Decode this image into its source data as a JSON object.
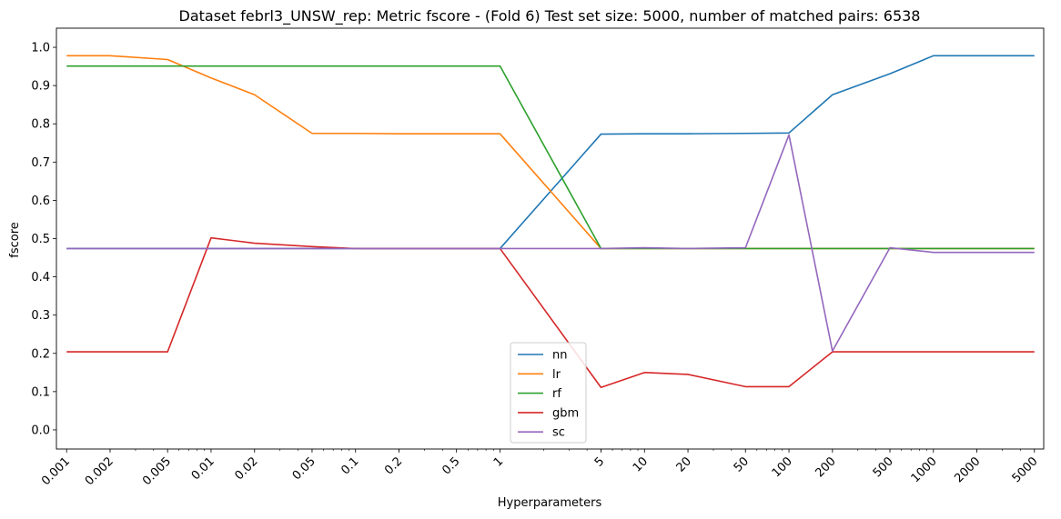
{
  "chart_data": {
    "type": "line",
    "title": "Dataset febrl3_UNSW_rep: Metric fscore - (Fold 6) Test set size: 5000, number of matched pairs: 6538",
    "xlabel": "Hyperparameters",
    "ylabel": "fscore",
    "xscale": "log",
    "x_ticks": [
      "0.001",
      "0.002",
      "0.005",
      "0.01",
      "0.02",
      "0.05",
      "0.1",
      "0.2",
      "0.5",
      "1",
      "5",
      "10",
      "20",
      "50",
      "100",
      "200",
      "500",
      "1000",
      "2000",
      "5000"
    ],
    "y_ticks": [
      "0.0",
      "0.1",
      "0.2",
      "0.3",
      "0.4",
      "0.5",
      "0.6",
      "0.7",
      "0.8",
      "0.9",
      "1.0"
    ],
    "ylim": [
      -0.05,
      1.05
    ],
    "legend_position": "lower center",
    "grid": false,
    "series": [
      {
        "name": "nn",
        "color": "#1f77b4",
        "x": [
          0.001,
          0.002,
          0.005,
          0.01,
          0.02,
          0.05,
          0.1,
          0.2,
          0.5,
          1,
          5,
          10,
          20,
          50,
          100,
          200,
          500,
          1000,
          2000,
          5000
        ],
        "values": [
          0.474,
          0.474,
          0.474,
          0.474,
          0.474,
          0.474,
          0.474,
          0.474,
          0.474,
          0.474,
          0.773,
          0.774,
          0.774,
          0.775,
          0.776,
          0.876,
          0.931,
          0.978,
          0.978,
          0.978
        ]
      },
      {
        "name": "lr",
        "color": "#ff7f0e",
        "x": [
          0.001,
          0.002,
          0.005,
          0.01,
          0.02,
          0.05,
          0.1,
          0.2,
          0.5,
          1,
          5,
          10,
          20,
          50,
          100,
          200,
          500,
          1000,
          2000,
          5000
        ],
        "values": [
          0.978,
          0.978,
          0.968,
          0.92,
          0.876,
          0.775,
          0.775,
          0.774,
          0.774,
          0.774,
          0.474,
          0.474,
          0.474,
          0.474,
          0.474,
          0.474,
          0.474,
          0.474,
          0.474,
          0.474
        ]
      },
      {
        "name": "rf",
        "color": "#2ca02c",
        "x": [
          0.001,
          0.002,
          0.005,
          0.01,
          0.02,
          0.05,
          0.1,
          0.2,
          0.5,
          1,
          5,
          10,
          20,
          50,
          100,
          200,
          500,
          1000,
          2000,
          5000
        ],
        "values": [
          0.951,
          0.951,
          0.951,
          0.951,
          0.951,
          0.951,
          0.951,
          0.951,
          0.951,
          0.951,
          0.474,
          0.474,
          0.474,
          0.474,
          0.474,
          0.474,
          0.474,
          0.474,
          0.474,
          0.474
        ]
      },
      {
        "name": "gbm",
        "color": "#d62728",
        "x": [
          0.001,
          0.002,
          0.005,
          0.01,
          0.02,
          0.05,
          0.1,
          0.2,
          0.5,
          1,
          5,
          10,
          20,
          50,
          100,
          200,
          500,
          1000,
          2000,
          5000
        ],
        "values": [
          0.204,
          0.204,
          0.204,
          0.502,
          0.488,
          0.479,
          0.474,
          0.474,
          0.474,
          0.474,
          0.111,
          0.15,
          0.145,
          0.113,
          0.113,
          0.204,
          0.204,
          0.204,
          0.204,
          0.204
        ]
      },
      {
        "name": "sc",
        "color": "#9467bd",
        "x": [
          0.001,
          0.002,
          0.005,
          0.01,
          0.02,
          0.05,
          0.1,
          0.2,
          0.5,
          1,
          5,
          10,
          20,
          50,
          100,
          200,
          500,
          1000,
          2000,
          5000
        ],
        "values": [
          0.474,
          0.474,
          0.474,
          0.474,
          0.474,
          0.474,
          0.474,
          0.474,
          0.474,
          0.474,
          0.474,
          0.476,
          0.474,
          0.476,
          0.771,
          0.206,
          0.476,
          0.464,
          0.464,
          0.464
        ]
      }
    ]
  }
}
